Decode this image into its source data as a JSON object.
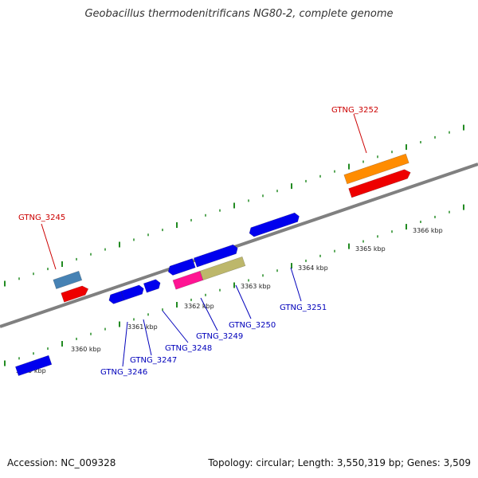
{
  "title": "Geobacillus thermodenitrificans NG80-2, complete genome",
  "footer": {
    "accession": "Accession: NC_009328",
    "summary": "Topology: circular; Length: 3,550,319 bp; Genes: 3,509"
  },
  "colors": {
    "backbone": "#808080",
    "ticks": "#228b22",
    "forward_label": "#cc0000",
    "reverse_label": "#0000bb",
    "gene_blue": "#0000ee",
    "gene_red": "#ee0000",
    "gene_orange": "#ff8c00",
    "gene_steel": "#4682b4",
    "gene_pink": "#ff1493",
    "gene_khaki": "#bdb76b"
  },
  "kbp_labels": [
    "3359 kbp",
    "3360 kbp",
    "3361 kbp",
    "3362 kbp",
    "3363 kbp",
    "3364 kbp",
    "3365 kbp",
    "3366 kbp"
  ],
  "gene_labels": [
    {
      "text": "GTNG_3245",
      "strand": "forward"
    },
    {
      "text": "GTNG_3252",
      "strand": "forward"
    },
    {
      "text": "GTNG_3246",
      "strand": "reverse"
    },
    {
      "text": "GTNG_3247",
      "strand": "reverse"
    },
    {
      "text": "GTNG_3248",
      "strand": "reverse"
    },
    {
      "text": "GTNG_3249",
      "strand": "reverse"
    },
    {
      "text": "GTNG_3250",
      "strand": "reverse"
    },
    {
      "text": "GTNG_3251",
      "strand": "reverse"
    }
  ]
}
